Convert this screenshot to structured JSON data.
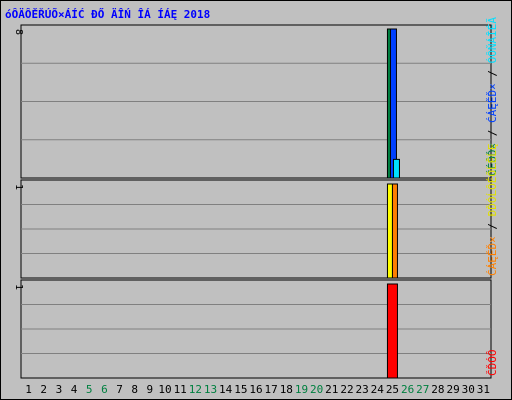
{
  "chart_data": {
    "type": "bar",
    "title": "óÔÄÔĚŘÚÕ×ÁÍĆ ĐŐ ÄÎŃ ÎÁ ÍÁĘ 2018",
    "title_color": "#0000ff",
    "background_color": "#c0c0c0",
    "grid_color": "#808080",
    "categories": [
      "1",
      "2",
      "3",
      "4",
      "5",
      "6",
      "7",
      "8",
      "9",
      "10",
      "11",
      "12",
      "13",
      "14",
      "15",
      "16",
      "17",
      "18",
      "19",
      "20",
      "21",
      "22",
      "23",
      "24",
      "25",
      "26",
      "27",
      "28",
      "29",
      "30",
      "31"
    ],
    "weekend_categories": [
      "5",
      "6",
      "12",
      "13",
      "19",
      "20",
      "26",
      "27"
    ],
    "weekday_color": "#000000",
    "weekend_color": "#008040",
    "panels": [
      {
        "ymax_label": "8",
        "ymax": 8,
        "legend": [
          {
            "text": "ČÉÔĎ×",
            "color": "#008040"
          },
          {
            "text": " / ",
            "color": "#000000"
          },
          {
            "text": "ĆÁĘĚĎ×",
            "color": "#0040ff"
          },
          {
            "text": " / ",
            "color": "#000000"
          },
          {
            "text": "ÓÔŇÁÎÉĂ",
            "color": "#00e0ff"
          }
        ],
        "series": [
          {
            "name": "ČÉÔĎ×",
            "color": "#008040",
            "values": [
              0,
              0,
              0,
              0,
              0,
              0,
              0,
              0,
              0,
              0,
              0,
              0,
              0,
              0,
              0,
              0,
              0,
              0,
              0,
              0,
              0,
              0,
              0,
              0,
              8,
              0,
              0,
              0,
              0,
              0,
              0
            ]
          },
          {
            "name": "ĆÁĘĚĎ×",
            "color": "#0040ff",
            "values": [
              0,
              0,
              0,
              0,
              0,
              0,
              0,
              0,
              0,
              0,
              0,
              0,
              0,
              0,
              0,
              0,
              0,
              0,
              0,
              0,
              0,
              0,
              0,
              0,
              8,
              0,
              0,
              0,
              0,
              0,
              0
            ]
          },
          {
            "name": "ÓÔŇÁÎÉĂ",
            "color": "#00e0ff",
            "values": [
              0,
              0,
              0,
              0,
              0,
              0,
              0,
              0,
              0,
              0,
              0,
              0,
              0,
              0,
              0,
              0,
              0,
              0,
              0,
              0,
              0,
              0,
              0,
              0,
              1,
              0,
              0,
              0,
              0,
              0,
              0
            ]
          }
        ]
      },
      {
        "ymax_label": "1",
        "ymax": 1,
        "legend": [
          {
            "text": "ĆÁĘĚĎ×",
            "color": "#ff8000"
          },
          {
            "text": " / ",
            "color": "#000000"
          },
          {
            "text": "ĐĎÓĹÔÉÔĹĚĹĘ",
            "color": "#e0e000"
          }
        ],
        "series": [
          {
            "name": "ĐĎÓĹÔÉÔĹĚĹĘ",
            "color": "#ffff00",
            "values": [
              0,
              0,
              0,
              0,
              0,
              0,
              0,
              0,
              0,
              0,
              0,
              0,
              0,
              0,
              0,
              0,
              0,
              0,
              0,
              0,
              0,
              0,
              0,
              0,
              1,
              0,
              0,
              0,
              0,
              0,
              0
            ]
          },
          {
            "name": "ĆÁĘĚĎ×",
            "color": "#ff8000",
            "values": [
              0,
              0,
              0,
              0,
              0,
              0,
              0,
              0,
              0,
              0,
              0,
              0,
              0,
              0,
              0,
              0,
              0,
              0,
              0,
              0,
              0,
              0,
              0,
              0,
              1,
              0,
              0,
              0,
              0,
              0,
              0
            ]
          }
        ]
      },
      {
        "ymax_label": "1",
        "ymax": 1,
        "legend": [
          {
            "text": "ČĎÓÔ",
            "color": "#ff0000"
          }
        ],
        "series": [
          {
            "name": "ČĎÓÔ",
            "color": "#ff0000",
            "values": [
              0,
              0,
              0,
              0,
              0,
              0,
              0,
              0,
              0,
              0,
              0,
              0,
              0,
              0,
              0,
              0,
              0,
              0,
              0,
              0,
              0,
              0,
              0,
              0,
              1,
              0,
              0,
              0,
              0,
              0,
              0
            ]
          }
        ]
      }
    ]
  }
}
